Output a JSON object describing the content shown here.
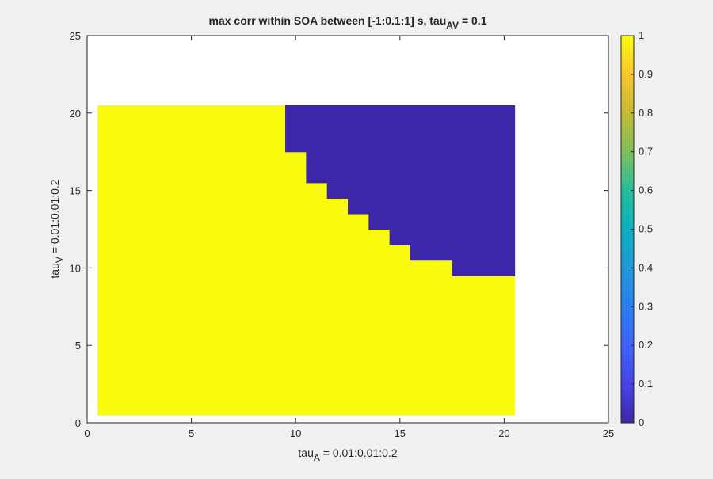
{
  "chart_data": {
    "type": "heatmap",
    "title": {
      "prefix": "max corr within SOA between [-1:0.1:1] s, tau",
      "subscript": "AV",
      "suffix": " = 0.1"
    },
    "xlabel": {
      "prefix": "tau",
      "subscript": "A",
      "suffix": " = 0.01:0.01:0.2"
    },
    "ylabel": {
      "prefix": "tau",
      "subscript": "V",
      "suffix": " = 0.01:0.01:0.2"
    },
    "xlim": [
      0,
      25
    ],
    "ylim": [
      0,
      25
    ],
    "xticks": [
      "0",
      "5",
      "10",
      "15",
      "20",
      "25"
    ],
    "yticks": [
      "0",
      "5",
      "10",
      "15",
      "20",
      "25"
    ],
    "grid_x_range": [
      1,
      20
    ],
    "grid_y_range": [
      1,
      20
    ],
    "value_high": 1,
    "value_low": 0,
    "low_region_rule": "cell value is 0 when tauV index >= threshold for its tauA index",
    "low_value_threshold_by_x": [
      {
        "x": 10,
        "y_min": 18
      },
      {
        "x": 11,
        "y_min": 16
      },
      {
        "x": 12,
        "y_min": 15
      },
      {
        "x": 13,
        "y_min": 14
      },
      {
        "x": 14,
        "y_min": 13
      },
      {
        "x": 15,
        "y_min": 12
      },
      {
        "x": 16,
        "y_min": 11
      },
      {
        "x": 17,
        "y_min": 11
      },
      {
        "x": 18,
        "y_min": 10
      },
      {
        "x": 19,
        "y_min": 10
      },
      {
        "x": 20,
        "y_min": 10
      }
    ],
    "colorbar": {
      "ticks": [
        "0",
        "0.1",
        "0.2",
        "0.3",
        "0.4",
        "0.5",
        "0.6",
        "0.7",
        "0.8",
        "0.9",
        "1"
      ],
      "range": [
        0,
        1
      ],
      "colormap": "parula"
    },
    "colors": {
      "low": "#3e26a8",
      "high": "#f9fb0e"
    }
  }
}
